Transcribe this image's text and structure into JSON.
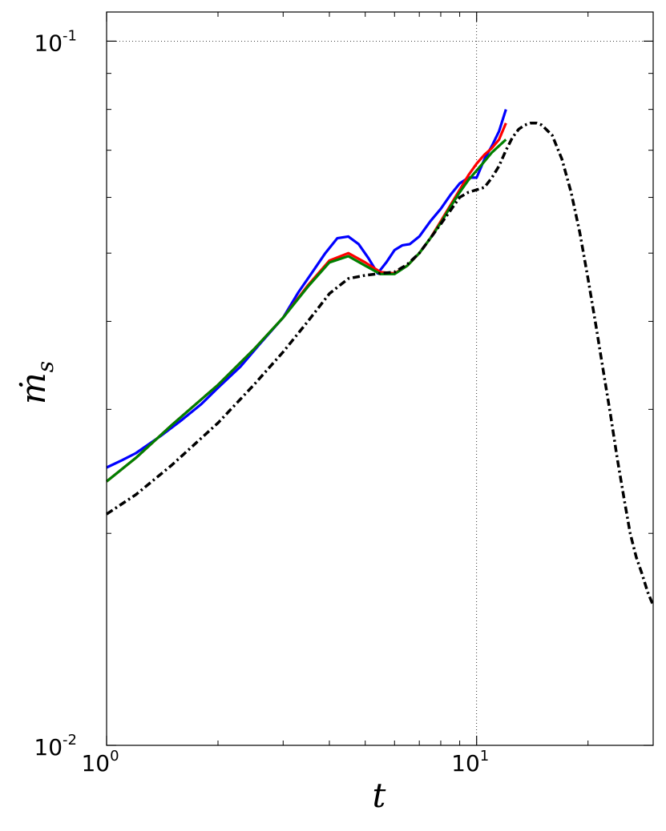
{
  "chart_data": {
    "type": "line",
    "xlabel": "t",
    "ylabel": "ṁ",
    "ylabel_sub": "s",
    "xscale": "log",
    "yscale": "log",
    "xlim": [
      1,
      30
    ],
    "ylim": [
      0.01,
      0.11
    ],
    "grid": "dotted at major ticks",
    "x_major_ticks": [
      {
        "value": 1,
        "base": "10",
        "exp": "0"
      },
      {
        "value": 10,
        "base": "10",
        "exp": "1"
      }
    ],
    "y_major_ticks": [
      {
        "value": 0.01,
        "base": "10",
        "exp": "-2"
      },
      {
        "value": 0.1,
        "base": "10",
        "exp": "-1"
      }
    ],
    "series": [
      {
        "color": "#0000ff",
        "style": "solid",
        "x": [
          1.0,
          1.1,
          1.2,
          1.4,
          1.6,
          1.8,
          2.0,
          2.3,
          2.6,
          3.0,
          3.3,
          3.6,
          3.9,
          4.2,
          4.5,
          4.8,
          5.1,
          5.4,
          5.7,
          6.0,
          6.3,
          6.6,
          7.0,
          7.5,
          8.0,
          8.5,
          9.0,
          9.5,
          10.0,
          10.5,
          11.0,
          11.5,
          12.0
        ],
        "y": [
          0.0248,
          0.0254,
          0.026,
          0.0275,
          0.029,
          0.0305,
          0.0322,
          0.0345,
          0.0372,
          0.0405,
          0.044,
          0.047,
          0.05,
          0.0525,
          0.0528,
          0.0515,
          0.0492,
          0.0468,
          0.0485,
          0.0505,
          0.0513,
          0.0515,
          0.0528,
          0.0555,
          0.0578,
          0.0605,
          0.0628,
          0.064,
          0.064,
          0.068,
          0.071,
          0.0745,
          0.08
        ]
      },
      {
        "color": "#ff0000",
        "style": "solid",
        "x": [
          1.0,
          1.2,
          1.5,
          2.0,
          2.5,
          3.0,
          3.5,
          4.0,
          4.5,
          5.0,
          5.5,
          6.0,
          6.5,
          7.0,
          7.5,
          8.0,
          8.5,
          9.0,
          9.5,
          10.0,
          10.5,
          11.0,
          11.5,
          12.0
        ],
        "y": [
          0.0237,
          0.0256,
          0.0285,
          0.0325,
          0.0365,
          0.0405,
          0.045,
          0.0488,
          0.05,
          0.0485,
          0.047,
          0.0468,
          0.048,
          0.05,
          0.0525,
          0.0555,
          0.0585,
          0.0615,
          0.0645,
          0.067,
          0.069,
          0.0705,
          0.0725,
          0.0765
        ]
      },
      {
        "color": "#008000",
        "style": "solid",
        "x": [
          1.0,
          1.2,
          1.5,
          2.0,
          2.5,
          3.0,
          3.5,
          4.0,
          4.5,
          5.0,
          5.5,
          6.0,
          6.5,
          7.0,
          7.5,
          8.0,
          8.5,
          9.0,
          9.5,
          10.0,
          10.5,
          11.0,
          11.5,
          12.0
        ],
        "y": [
          0.0237,
          0.0256,
          0.0285,
          0.0325,
          0.0365,
          0.0405,
          0.0448,
          0.0485,
          0.0495,
          0.048,
          0.0467,
          0.0467,
          0.048,
          0.05,
          0.0525,
          0.0552,
          0.0582,
          0.061,
          0.0635,
          0.0655,
          0.0675,
          0.0695,
          0.071,
          0.0725
        ]
      },
      {
        "color": "#000000",
        "style": "dashdot",
        "x": [
          1.0,
          1.2,
          1.5,
          2.0,
          2.5,
          3.0,
          3.5,
          4.0,
          4.5,
          5.0,
          5.5,
          6.0,
          6.5,
          7.0,
          7.5,
          8.0,
          8.5,
          9.0,
          9.5,
          10.0,
          10.5,
          11.0,
          11.5,
          12.0,
          12.5,
          13.0,
          13.5,
          14.0,
          14.5,
          15.0,
          16.0,
          17.0,
          18.0,
          19.0,
          20.0,
          21.0,
          22.0,
          23.0,
          24.0,
          25.0,
          26.0,
          27.0,
          28.0,
          29.0,
          30.0
        ],
        "y": [
          0.0213,
          0.0227,
          0.025,
          0.0287,
          0.0325,
          0.0362,
          0.04,
          0.0438,
          0.046,
          0.0465,
          0.0468,
          0.047,
          0.0482,
          0.05,
          0.0525,
          0.055,
          0.0575,
          0.06,
          0.061,
          0.0615,
          0.062,
          0.064,
          0.0665,
          0.07,
          0.073,
          0.075,
          0.076,
          0.0765,
          0.0765,
          0.076,
          0.0735,
          0.068,
          0.061,
          0.0535,
          0.046,
          0.0395,
          0.034,
          0.0295,
          0.0255,
          0.0225,
          0.02,
          0.0185,
          0.0175,
          0.0165,
          0.0158
        ]
      }
    ]
  }
}
